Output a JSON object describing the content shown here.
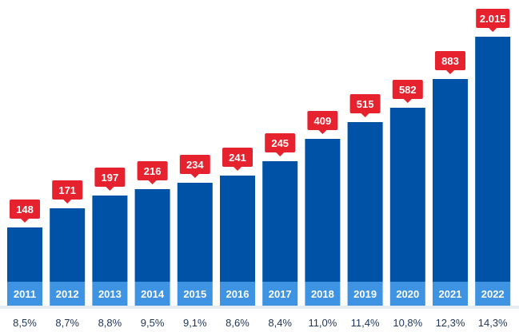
{
  "colors": {
    "bar": "#0052a6",
    "year_band": "#3f93e3",
    "label_bubble": "#e5222e",
    "label_text": "#ffffff",
    "pct_text": "#1f3558"
  },
  "chart_data": {
    "type": "bar",
    "categories": [
      "2011",
      "2012",
      "2013",
      "2014",
      "2015",
      "2016",
      "2017",
      "2018",
      "2019",
      "2020",
      "2021",
      "2022"
    ],
    "values": [
      148,
      171,
      197,
      216,
      234,
      241,
      245,
      409,
      515,
      582,
      883,
      2015
    ],
    "value_labels": [
      "148",
      "171",
      "197",
      "216",
      "234",
      "241",
      "245",
      "409",
      "515",
      "582",
      "883",
      "2.015"
    ],
    "percent_labels": [
      "8,5%",
      "8,7%",
      "8,8%",
      "9,5%",
      "9,1%",
      "8,6%",
      "8,4%",
      "11,0%",
      "11,4%",
      "10,8%",
      "12,3%",
      "14,3%"
    ],
    "axis_scale": "nonlinear (bars not proportional to values)",
    "title": "",
    "xlabel": "",
    "ylabel": "",
    "grid": false,
    "legend": "none"
  }
}
